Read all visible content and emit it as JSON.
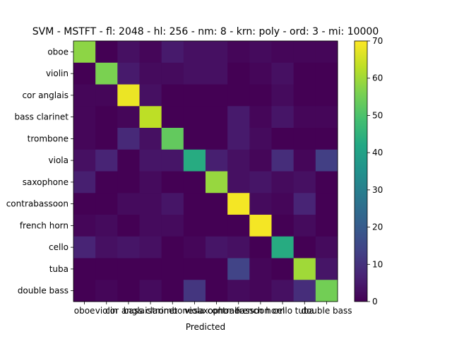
{
  "chart_data": {
    "type": "heatmap",
    "title": "SVM - MSTFT - fl: 2048 - hl: 256 - nm: 8 - krn: poly - ord: 3 - mi: 10000",
    "xlabel": "Predicted",
    "ylabel": "",
    "x_categories": [
      "oboe",
      "violin",
      "cor anglais",
      "bass clarinet",
      "trombone",
      "viola",
      "saxophone",
      "contrabassoon",
      "french horn",
      "cello",
      "tuba",
      "double bass"
    ],
    "y_categories": [
      "oboe",
      "violin",
      "cor anglais",
      "bass clarinet",
      "trombone",
      "viola",
      "saxophone",
      "contrabassoon",
      "french horn",
      "cello",
      "tuba",
      "double bass"
    ],
    "values": [
      [
        58,
        0,
        3,
        1,
        5,
        3,
        3,
        1,
        2,
        1,
        1,
        1
      ],
      [
        0,
        56,
        5,
        2,
        2,
        3,
        3,
        0,
        1,
        3,
        0,
        0
      ],
      [
        1,
        1,
        68,
        3,
        0,
        0,
        0,
        0,
        0,
        2,
        0,
        0
      ],
      [
        1,
        0,
        1,
        63,
        0,
        0,
        0,
        5,
        1,
        4,
        1,
        1
      ],
      [
        1,
        0,
        8,
        3,
        53,
        0,
        0,
        5,
        2,
        0,
        0,
        0
      ],
      [
        3,
        7,
        0,
        4,
        4,
        43,
        6,
        3,
        1,
        9,
        1,
        13
      ],
      [
        6,
        0,
        0,
        2,
        0,
        0,
        59,
        3,
        4,
        2,
        3,
        0
      ],
      [
        0,
        0,
        2,
        2,
        4,
        0,
        0,
        69,
        2,
        1,
        7,
        0
      ],
      [
        1,
        2,
        0,
        2,
        2,
        0,
        0,
        0,
        69,
        0,
        2,
        0
      ],
      [
        7,
        3,
        4,
        3,
        0,
        1,
        4,
        3,
        0,
        43,
        0,
        2
      ],
      [
        0,
        0,
        0,
        0,
        0,
        0,
        0,
        14,
        1,
        0,
        60,
        4
      ],
      [
        0,
        1,
        0,
        2,
        0,
        11,
        0,
        2,
        1,
        3,
        9,
        55
      ]
    ],
    "colormap": "viridis",
    "colorbar": {
      "min": 0,
      "max": 70,
      "ticks": [
        0,
        10,
        20,
        30,
        40,
        50,
        60,
        70
      ]
    },
    "grid": false,
    "legend": "none"
  }
}
